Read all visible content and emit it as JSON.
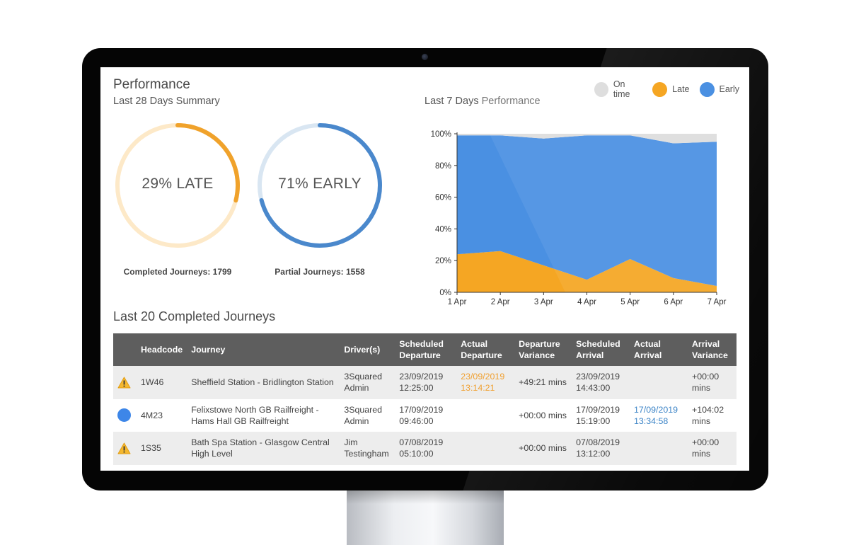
{
  "page": {
    "title": "Performance",
    "summary_subtitle": "Last 28 Days Summary",
    "chart_subtitle_prefix": "Last 7 Days",
    "chart_subtitle_suffix": "Performance"
  },
  "legend": [
    {
      "label": "On time",
      "color": "#dddddd"
    },
    {
      "label": "Late",
      "color": "#f5a623"
    },
    {
      "label": "Early",
      "color": "#4a90e2"
    }
  ],
  "summary": {
    "late": {
      "label": "29% LATE",
      "percent": 29,
      "color": "#f0a22b",
      "track": "#fde9c8"
    },
    "early": {
      "label": "71% EARLY",
      "percent": 71,
      "color": "#4a88cc",
      "track": "#d9e6f2"
    },
    "completed_caption": "Completed Journeys: 1799",
    "partial_caption": "Partial Journeys: 1558"
  },
  "chart_data": {
    "type": "area",
    "stacked": true,
    "categories": [
      "1 Apr",
      "2 Apr",
      "3 Apr",
      "4 Apr",
      "5 Apr",
      "6 Apr",
      "7 Apr"
    ],
    "y_ticks": [
      "100%",
      "80%",
      "60%",
      "40%",
      "20%",
      "0%"
    ],
    "ylim": [
      0,
      100
    ],
    "series": [
      {
        "name": "Late",
        "color": "#f5a623",
        "values": [
          24,
          26,
          17,
          8,
          21,
          9,
          4
        ]
      },
      {
        "name": "Early",
        "color": "#4a90e2",
        "values": [
          75,
          73,
          80,
          91,
          78,
          85,
          91
        ]
      },
      {
        "name": "On time",
        "color": "#dddddd",
        "values": [
          1,
          1,
          3,
          1,
          1,
          6,
          5
        ]
      }
    ]
  },
  "journeys": {
    "title": "Last 20 Completed Journeys",
    "columns": {
      "headcode": "Headcode",
      "journey": "Journey",
      "drivers": "Driver(s)",
      "sched_dep": "Scheduled Departure",
      "actual_dep": "Actual Departure",
      "dep_var": "Departure Variance",
      "sched_arr": "Scheduled Arrival",
      "actual_arr": "Actual Arrival",
      "arr_var": "Arrival Variance"
    },
    "rows": [
      {
        "status_icon": "warning-icon",
        "headcode": "1W46",
        "journey": "Sheffield Station - Bridlington Station",
        "drivers": "3Squared Admin",
        "sched_dep": "23/09/2019 12:25:00",
        "actual_dep": "23/09/2019 13:14:21",
        "dep_var": "+49:21 mins",
        "sched_arr": "23/09/2019 14:43:00",
        "actual_arr": "",
        "arr_var": "+00:00 mins"
      },
      {
        "status_icon": "early-dot-icon",
        "headcode": "4M23",
        "journey": "Felixstowe North GB Railfreight - Hams Hall GB Railfreight",
        "drivers": "3Squared Admin",
        "sched_dep": "17/09/2019 09:46:00",
        "actual_dep": "",
        "dep_var": "+00:00 mins",
        "sched_arr": "17/09/2019 15:19:00",
        "actual_arr": "17/09/2019 13:34:58",
        "arr_var": "+104:02 mins"
      },
      {
        "status_icon": "warning-icon",
        "headcode": "1S35",
        "journey": "Bath Spa Station - Glasgow Central High Level",
        "drivers": "Jim Testingham",
        "sched_dep": "07/08/2019 05:10:00",
        "actual_dep": "",
        "dep_var": "+00:00 mins",
        "sched_arr": "07/08/2019 13:12:00",
        "actual_arr": "",
        "arr_var": "+00:00 mins"
      }
    ]
  }
}
